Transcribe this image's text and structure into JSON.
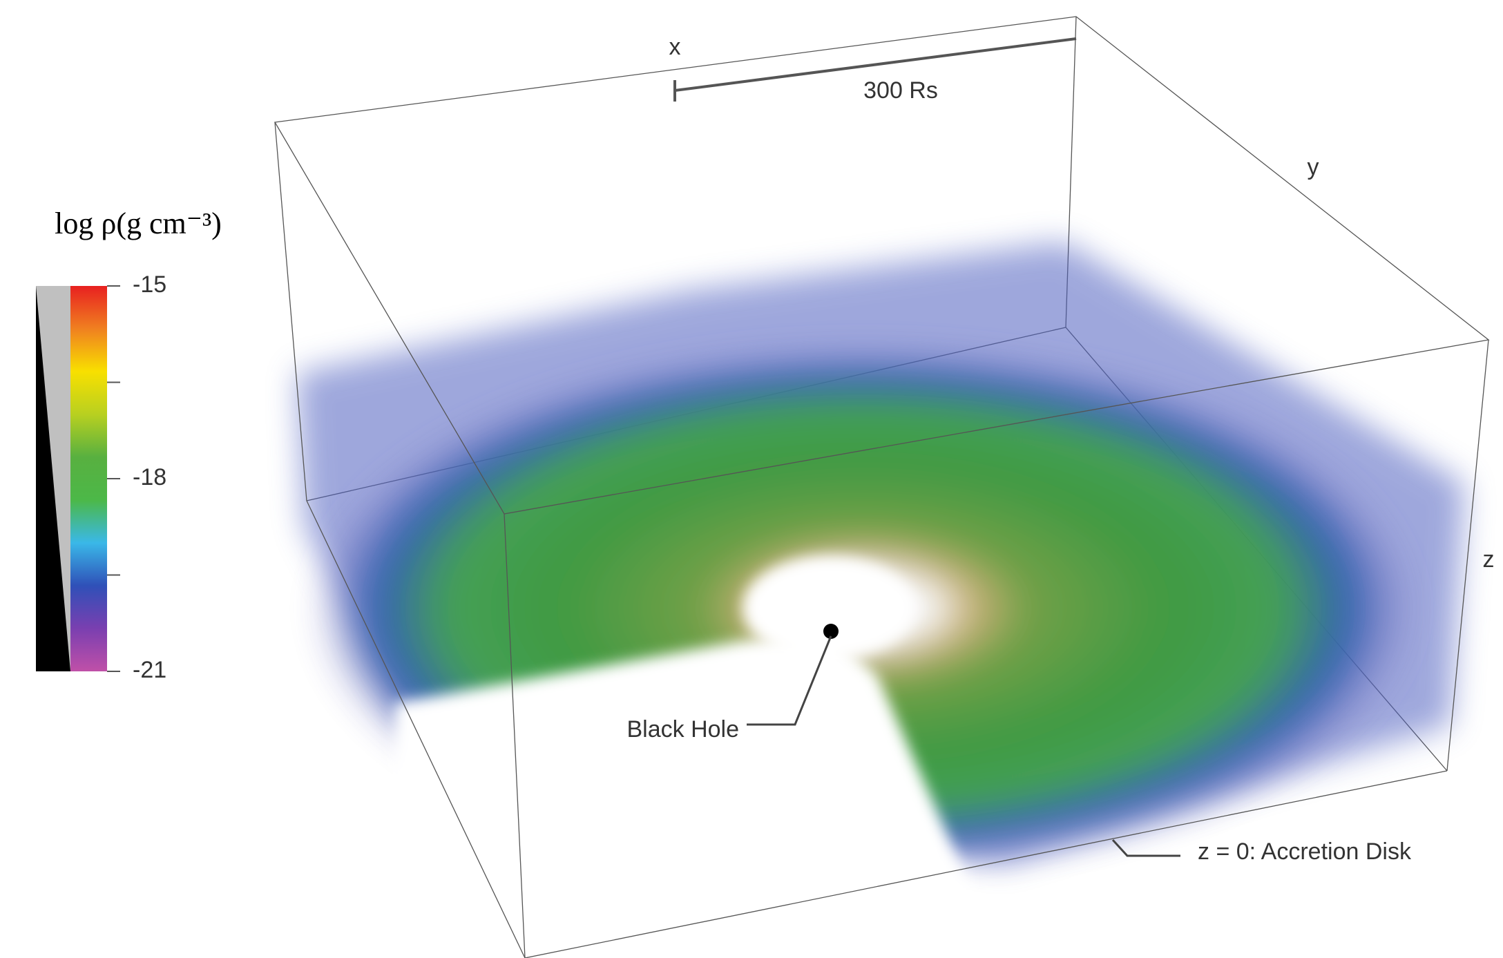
{
  "figure": {
    "axes": {
      "x": "x",
      "y": "y",
      "z": "z"
    },
    "scale_bar": "300 Rs",
    "annotations": {
      "black_hole": "Black Hole",
      "disk": "z = 0: Accretion Disk"
    },
    "colorbar": {
      "label": "log ρ(g cm⁻³)",
      "lim": [
        -21,
        -15
      ],
      "ticks": [
        -15,
        -18,
        -21
      ],
      "minor_ticks": [
        -16.5,
        -19.5
      ],
      "colors": [
        "#c050a8",
        "#7a3fb0",
        "#2f50b8",
        "#3ab8e8",
        "#4cb848",
        "#58b040",
        "#b8d020",
        "#f8e000",
        "#f08020",
        "#e82020"
      ]
    }
  }
}
